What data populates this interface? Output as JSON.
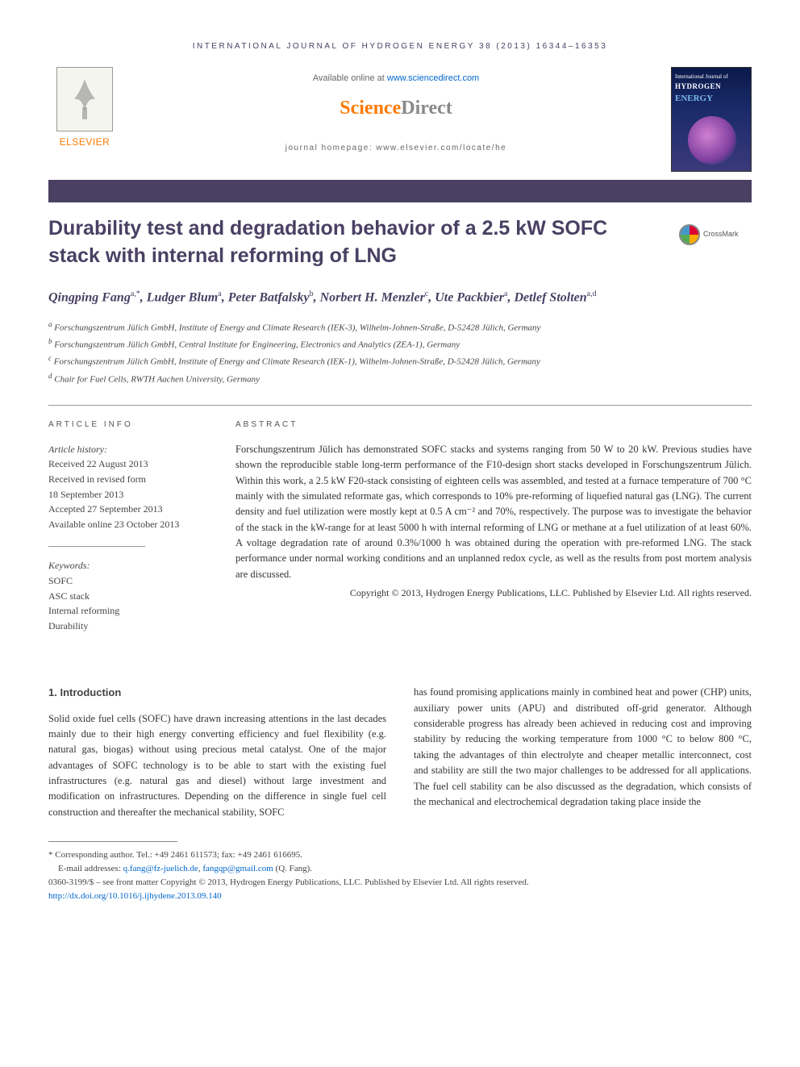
{
  "colors": {
    "header_purple": "#494063",
    "orange": "#ff7a00",
    "link_blue": "#0066cc",
    "text_gray": "#666666",
    "body_text": "#333333"
  },
  "typography": {
    "title_fontsize": 25,
    "author_fontsize": 16,
    "body_fontsize": 12.5,
    "meta_fontsize": 12,
    "footnote_fontsize": 11
  },
  "header": {
    "journal_ref": "INTERNATIONAL JOURNAL OF HYDROGEN ENERGY 38 (2013) 16344–16353",
    "available_prefix": "Available online at ",
    "available_link": "www.sciencedirect.com",
    "sd_logo_left": "Science",
    "sd_logo_right": "Direct",
    "homepage": "journal homepage: www.elsevier.com/locate/he",
    "elsevier": "ELSEVIER",
    "cover": {
      "line1": "HYDROGEN",
      "line2": "ENERGY",
      "tagline": "International Journal of"
    }
  },
  "crossmark_label": "CrossMark",
  "title": "Durability test and degradation behavior of a 2.5 kW SOFC stack with internal reforming of LNG",
  "authors_html": "Qingping Fang<span class='sup'>a,*</span>, Ludger Blum<span class='sup'>a</span>, Peter Batfalsky<span class='sup'>b</span>, Norbert H. Menzler<span class='sup'>c</span>, Ute Packbier<span class='sup'>a</span>, Detlef Stolten<span class='sup'>a,d</span>",
  "affiliations": [
    {
      "sup": "a",
      "text": "Forschungszentrum Jülich GmbH, Institute of Energy and Climate Research (IEK-3), Wilhelm-Johnen-Straße, D-52428 Jülich, Germany"
    },
    {
      "sup": "b",
      "text": "Forschungszentrum Jülich GmbH, Central Institute for Engineering, Electronics and Analytics (ZEA-1), Germany"
    },
    {
      "sup": "c",
      "text": "Forschungszentrum Jülich GmbH, Institute of Energy and Climate Research (IEK-1), Wilhelm-Johnen-Straße, D-52428 Jülich, Germany"
    },
    {
      "sup": "d",
      "text": "Chair for Fuel Cells, RWTH Aachen University, Germany"
    }
  ],
  "info": {
    "label": "ARTICLE INFO",
    "history_heading": "Article history:",
    "history": [
      "Received 22 August 2013",
      "Received in revised form",
      "18 September 2013",
      "Accepted 27 September 2013",
      "Available online 23 October 2013"
    ],
    "keywords_heading": "Keywords:",
    "keywords": [
      "SOFC",
      "ASC stack",
      "Internal reforming",
      "Durability"
    ]
  },
  "abstract": {
    "label": "ABSTRACT",
    "text": "Forschungszentrum Jülich has demonstrated SOFC stacks and systems ranging from 50 W to 20 kW. Previous studies have shown the reproducible stable long-term performance of the F10-design short stacks developed in Forschungszentrum Jülich. Within this work, a 2.5 kW F20-stack consisting of eighteen cells was assembled, and tested at a furnace temperature of 700 °C mainly with the simulated reformate gas, which corresponds to 10% pre-reforming of liquefied natural gas (LNG). The current density and fuel utilization were mostly kept at 0.5 A cm⁻² and 70%, respectively. The purpose was to investigate the behavior of the stack in the kW-range for at least 5000 h with internal reforming of LNG or methane at a fuel utilization of at least 60%. A voltage degradation rate of around 0.3%/1000 h was obtained during the operation with pre-reformed LNG. The stack performance under normal working conditions and an unplanned redox cycle, as well as the results from post mortem analysis are discussed.",
    "copyright": "Copyright © 2013, Hydrogen Energy Publications, LLC. Published by Elsevier Ltd. All rights reserved."
  },
  "section1": {
    "heading": "1.      Introduction",
    "col1": "Solid oxide fuel cells (SOFC) have drawn increasing attentions in the last decades mainly due to their high energy converting efficiency and fuel flexibility (e.g. natural gas, biogas) without using precious metal catalyst. One of the major advantages of SOFC technology is to be able to start with the existing fuel infrastructures (e.g. natural gas and diesel) without large investment and modification on infrastructures. Depending on the difference in single fuel cell construction and thereafter the mechanical stability, SOFC",
    "col2": "has found promising applications mainly in combined heat and power (CHP) units, auxiliary power units (APU) and distributed off-grid generator. Although considerable progress has already been achieved in reducing cost and improving stability by reducing the working temperature from 1000 °C to below 800 °C, taking the advantages of thin electrolyte and cheaper metallic interconnect, cost and stability are still the two major challenges to be addressed for all applications. The fuel cell stability can be also discussed as the degradation, which consists of the mechanical and electrochemical degradation taking place inside the"
  },
  "footnotes": {
    "corr": "* Corresponding author. Tel.: +49 2461 611573; fax: +49 2461 616695.",
    "email_label": "E-mail addresses: ",
    "emails": [
      "q.fang@fz-juelich.de",
      "fangqp@gmail.com"
    ],
    "email_suffix": " (Q. Fang).",
    "issn": "0360-3199/$ – see front matter Copyright © 2013, Hydrogen Energy Publications, LLC. Published by Elsevier Ltd. All rights reserved.",
    "doi": "http://dx.doi.org/10.1016/j.ijhydene.2013.09.140"
  }
}
